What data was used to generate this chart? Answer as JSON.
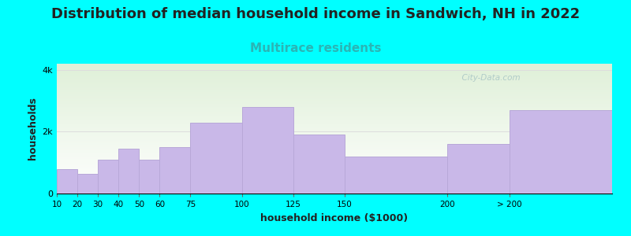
{
  "title": "Distribution of median household income in Sandwich, NH in 2022",
  "subtitle": "Multirace residents",
  "xlabel": "household income ($1000)",
  "ylabel": "households",
  "bar_color": "#c9b8e8",
  "bar_edge_color": "#b8a8d8",
  "values": [
    800,
    640,
    1100,
    1450,
    1100,
    1500,
    2300,
    2800,
    1900,
    1200,
    1600,
    2700
  ],
  "categories": [
    "10",
    "20",
    "30",
    "40",
    "50",
    "60",
    "75",
    "100",
    "125",
    "150",
    "200",
    "> 200"
  ],
  "bar_lefts": [
    10,
    20,
    30,
    40,
    50,
    60,
    75,
    100,
    125,
    150,
    200,
    230
  ],
  "bar_rights": [
    20,
    30,
    40,
    50,
    60,
    75,
    100,
    125,
    150,
    200,
    230,
    280
  ],
  "xlim": [
    10,
    280
  ],
  "ylim": [
    0,
    4200
  ],
  "yticks": [
    0,
    2000,
    4000
  ],
  "ytick_labels": [
    "0",
    "2k",
    "4k"
  ],
  "xtick_positions": [
    10,
    20,
    30,
    40,
    50,
    60,
    75,
    100,
    125,
    150,
    200,
    230
  ],
  "background_color": "#00ffff",
  "plot_bg_top": "#dff0d8",
  "plot_bg_bottom": "#ffffff",
  "title_fontsize": 13,
  "subtitle_fontsize": 11,
  "subtitle_color": "#2ab5b5",
  "watermark": "  City-Data.com",
  "watermark_color": "#a8c5c5",
  "grid_color": "#dddddd"
}
